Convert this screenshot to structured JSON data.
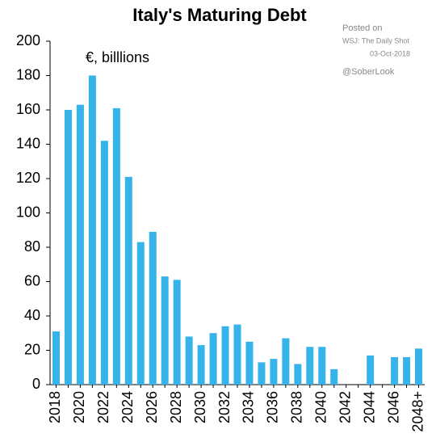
{
  "chart_data": {
    "type": "bar",
    "title": "Italy's Maturing Debt",
    "subtitle": "€, billlions",
    "source": [
      "Posted on",
      "WSJ: The Daily Shot",
      "03-Oct-2018",
      "@SoberLook"
    ],
    "categories": [
      "2018",
      null,
      "2020",
      null,
      "2022",
      null,
      "2024",
      null,
      "2026",
      null,
      "2028",
      null,
      "2030",
      null,
      "2032",
      null,
      "2034",
      null,
      "2036",
      null,
      "2038",
      null,
      "2040",
      null,
      "2042",
      null,
      "2044",
      null,
      "2046",
      null,
      "2048+"
    ],
    "values": [
      31,
      160,
      163,
      180,
      142,
      161,
      121,
      83,
      89,
      63,
      61,
      28,
      23,
      30,
      34,
      35,
      25,
      13,
      15,
      27,
      12,
      22,
      22,
      9,
      null,
      null,
      17,
      null,
      16,
      16,
      21
    ],
    "color": "#36b3ea",
    "ylim": [
      0,
      200
    ],
    "yticks": [
      0,
      20,
      40,
      60,
      80,
      100,
      120,
      140,
      160,
      180,
      200
    ]
  }
}
